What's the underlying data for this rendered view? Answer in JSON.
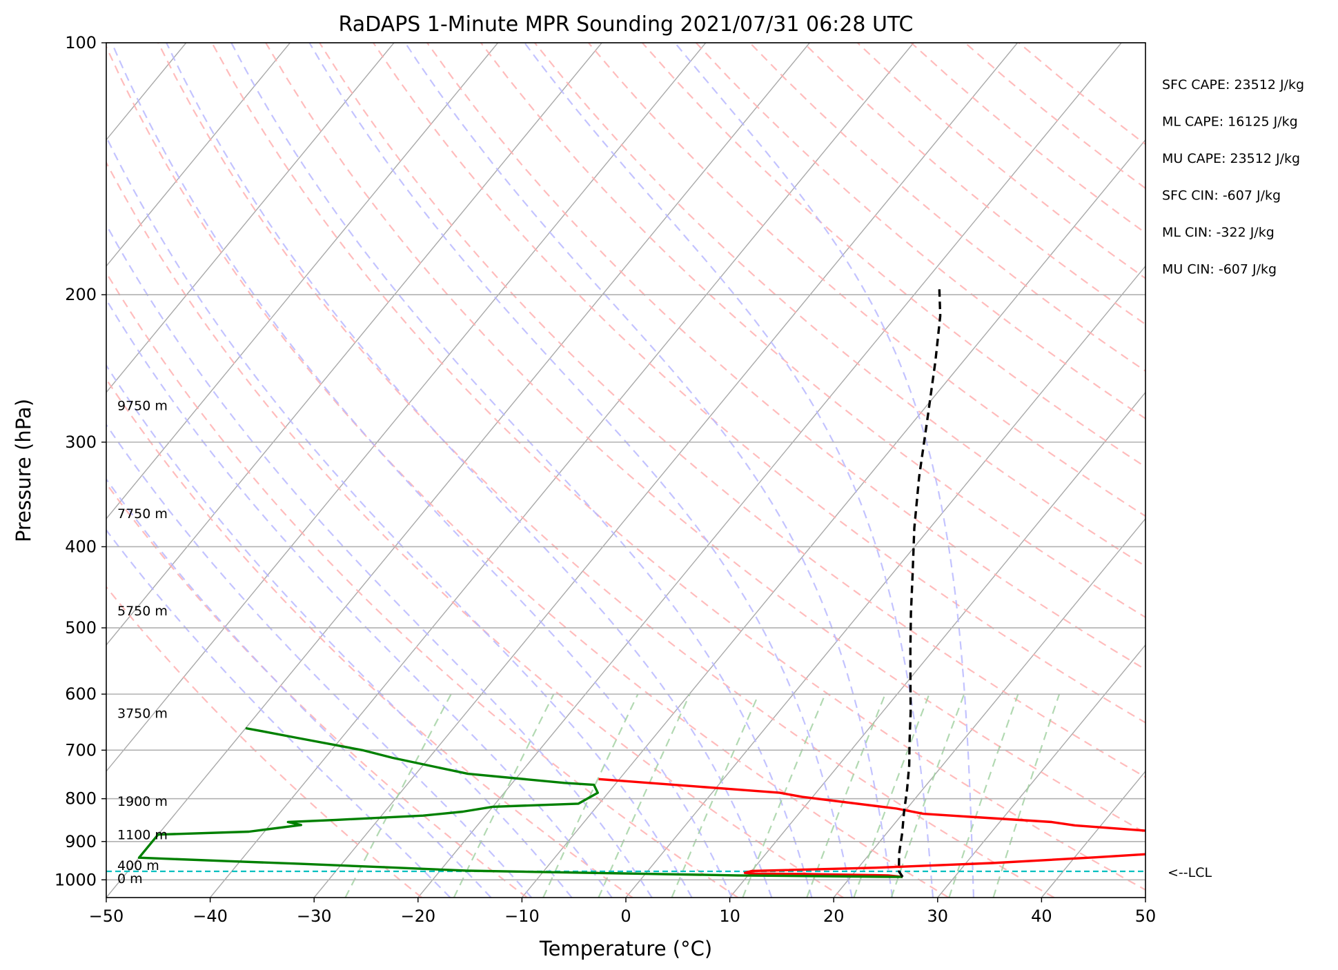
{
  "chart_data": {
    "type": "line",
    "subtype": "skew-t log-p sounding",
    "title": "RaDAPS 1-Minute MPR Sounding 2021/07/31 06:28 UTC",
    "xlabel": "Temperature (°C)",
    "ylabel": "Pressure (hPa)",
    "xlim": [
      -50,
      50
    ],
    "ylim": [
      1050,
      100
    ],
    "y_scale": "log",
    "x_ticks": [
      -50,
      -40,
      -30,
      -20,
      -10,
      0,
      10,
      20,
      30,
      40,
      50
    ],
    "x_tick_labels": [
      "−50",
      "−40",
      "−30",
      "−20",
      "−10",
      "0",
      "10",
      "20",
      "30",
      "40",
      "50"
    ],
    "y_ticks": [
      100,
      200,
      300,
      400,
      500,
      600,
      700,
      800,
      900,
      1000
    ],
    "y_tick_labels": [
      "100",
      "200",
      "300",
      "400",
      "500",
      "600",
      "700",
      "800",
      "900",
      "1000"
    ],
    "grid": true,
    "background_lines": {
      "isotherms_color": "#a9a9a9",
      "dry_adiabats_color": "#ffb0b0",
      "moist_adiabats_color": "#b8b8ff",
      "mixing_ratio_color": "#9fd09f"
    },
    "series": [
      {
        "role": "temperature",
        "color": "#ff0000",
        "style": "solid",
        "points": [
          [
            25.0,
            992
          ],
          [
            23.5,
            988
          ],
          [
            15.0,
            984
          ],
          [
            10.5,
            983
          ],
          [
            9.5,
            981
          ],
          [
            10.0,
            976
          ],
          [
            22.0,
            967
          ],
          [
            32.5,
            955
          ],
          [
            42.0,
            940
          ],
          [
            50.0,
            926
          ],
          [
            50.0,
            883
          ],
          [
            37.5,
            861
          ],
          [
            35.0,
            853
          ],
          [
            22.0,
            834
          ],
          [
            19.0,
            822
          ],
          [
            9.0,
            796
          ],
          [
            6.5,
            787
          ],
          [
            -12.0,
            758
          ]
        ]
      },
      {
        "role": "dewpoint",
        "color": "#008000",
        "style": "solid",
        "points": [
          [
            25.0,
            992
          ],
          [
            9.0,
            988
          ],
          [
            -1.0,
            983
          ],
          [
            -17.5,
            975
          ],
          [
            -25.5,
            966
          ],
          [
            -34.0,
            957
          ],
          [
            -41.0,
            950
          ],
          [
            -50.0,
            941
          ],
          [
            -50.0,
            883
          ],
          [
            -41.5,
            876
          ],
          [
            -37.0,
            860
          ],
          [
            -38.5,
            853
          ],
          [
            -34.0,
            848
          ],
          [
            -26.0,
            838
          ],
          [
            -22.5,
            829
          ],
          [
            -20.0,
            818
          ],
          [
            -12.0,
            811
          ],
          [
            -11.0,
            787
          ],
          [
            -12.0,
            770
          ],
          [
            -15.0,
            766
          ],
          [
            -25.0,
            747
          ],
          [
            -33.5,
            715
          ],
          [
            -37.0,
            700
          ],
          [
            -44.5,
            676
          ],
          [
            -48.0,
            665
          ],
          [
            -50.0,
            659
          ]
        ]
      },
      {
        "role": "parcel path",
        "color": "#000000",
        "style": "dashed",
        "points": [
          [
            25.0,
            992
          ],
          [
            24.2,
            977
          ],
          [
            22.8,
            930
          ],
          [
            21.5,
            880
          ],
          [
            20.0,
            830
          ],
          [
            18.5,
            780
          ],
          [
            16.8,
            730
          ],
          [
            14.8,
            680
          ],
          [
            12.7,
            630
          ],
          [
            10.3,
            580
          ],
          [
            7.7,
            530
          ],
          [
            4.9,
            480
          ],
          [
            1.9,
            430
          ],
          [
            -1.5,
            380
          ],
          [
            -5.1,
            330
          ],
          [
            -9.0,
            280
          ],
          [
            -12.7,
            240
          ],
          [
            -15.8,
            212
          ],
          [
            -18.0,
            197
          ]
        ]
      }
    ],
    "lcl": {
      "pressure": 977,
      "label": "<--LCL",
      "color": "#00bfbf"
    },
    "height_labels": [
      {
        "text": "0 m",
        "pressure": 996
      },
      {
        "text": "400 m",
        "pressure": 960
      },
      {
        "text": "1100 m",
        "pressure": 883
      },
      {
        "text": "1900 m",
        "pressure": 805
      },
      {
        "text": "3750 m",
        "pressure": 632
      },
      {
        "text": "5750 m",
        "pressure": 477
      },
      {
        "text": "7750 m",
        "pressure": 365
      },
      {
        "text": "9750 m",
        "pressure": 271
      }
    ],
    "stats": [
      "SFC CAPE: 23512 J/kg",
      "ML CAPE: 16125 J/kg",
      "MU CAPE: 23512 J/kg",
      "SFC CIN: -607 J/kg",
      "ML CIN: -322 J/kg",
      "MU CIN: -607 J/kg"
    ]
  }
}
